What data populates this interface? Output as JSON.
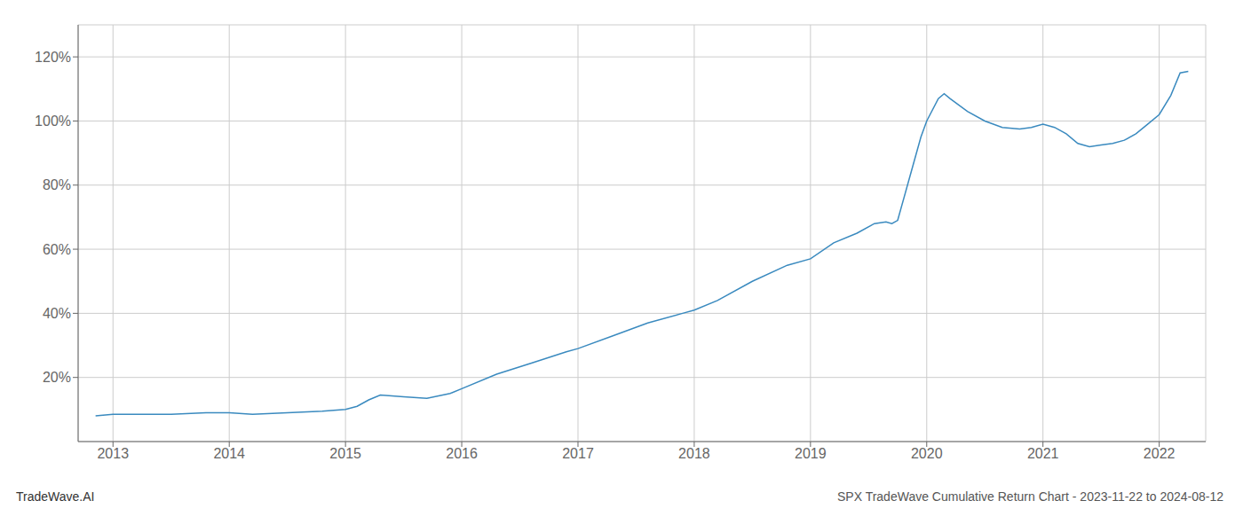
{
  "chart_data": {
    "type": "line",
    "title": "SPX TradeWave Cumulative Return Chart - 2023-11-22 to 2024-08-12",
    "annotations": [
      "TradeWave.AI"
    ],
    "color": "#3a8abf",
    "grid": true,
    "x": [
      2012.85,
      2013.0,
      2013.2,
      2013.5,
      2013.8,
      2014.0,
      2014.2,
      2014.5,
      2014.8,
      2015.0,
      2015.1,
      2015.2,
      2015.3,
      2015.5,
      2015.7,
      2015.9,
      2016.0,
      2016.3,
      2016.6,
      2016.9,
      2017.0,
      2017.3,
      2017.6,
      2017.9,
      2018.0,
      2018.2,
      2018.5,
      2018.8,
      2019.0,
      2019.2,
      2019.4,
      2019.55,
      2019.65,
      2019.7,
      2019.75,
      2019.85,
      2019.95,
      2020.0,
      2020.1,
      2020.15,
      2020.2,
      2020.35,
      2020.5,
      2020.65,
      2020.8,
      2020.9,
      2021.0,
      2021.1,
      2021.2,
      2021.3,
      2021.4,
      2021.5,
      2021.6,
      2021.7,
      2021.8,
      2021.9,
      2022.0,
      2022.1,
      2022.18,
      2022.25
    ],
    "values": [
      8.0,
      8.5,
      8.5,
      8.5,
      9.0,
      9.0,
      8.5,
      9.0,
      9.5,
      10.0,
      11.0,
      13.0,
      14.5,
      14.0,
      13.5,
      15.0,
      16.5,
      21.0,
      24.5,
      28.0,
      29.0,
      33.0,
      37.0,
      40.0,
      41.0,
      44.0,
      50.0,
      55.0,
      57.0,
      62.0,
      65.0,
      68.0,
      68.5,
      68.0,
      69.0,
      82.0,
      95.0,
      100.0,
      107.0,
      108.5,
      107.0,
      103.0,
      100.0,
      98.0,
      97.5,
      98.0,
      99.0,
      98.0,
      96.0,
      93.0,
      92.0,
      92.5,
      93.0,
      94.0,
      96.0,
      99.0,
      102.0,
      108.0,
      115.0,
      115.5
    ],
    "xlim": [
      2012.7,
      2022.4
    ],
    "xticks": [
      2013,
      2014,
      2015,
      2016,
      2017,
      2018,
      2019,
      2020,
      2021,
      2022
    ],
    "ylim": [
      0,
      130
    ],
    "yticks": [
      {
        "value": 20,
        "label": "20%"
      },
      {
        "value": 40,
        "label": "40%"
      },
      {
        "value": 60,
        "label": "60%"
      },
      {
        "value": 80,
        "label": "80%"
      },
      {
        "value": 100,
        "label": "100%"
      },
      {
        "value": 120,
        "label": "120%"
      }
    ]
  }
}
